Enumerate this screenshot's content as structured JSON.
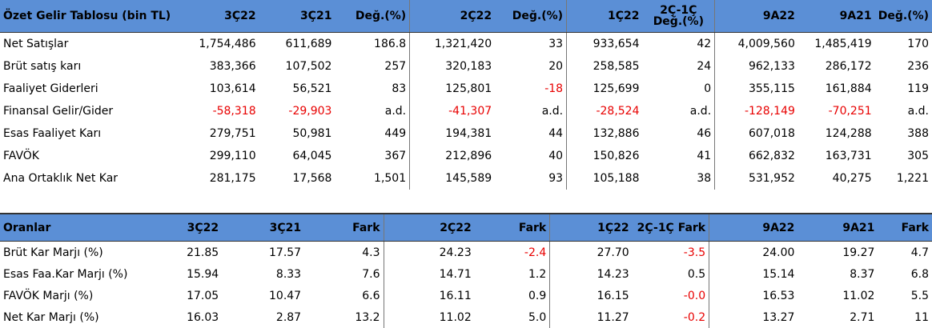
{
  "table1": {
    "headers": [
      "Özet Gelir Tablosu (bin TL)",
      "3Ç22",
      "3Ç21",
      "Değ.(%)",
      "2Ç22",
      "Değ.(%)",
      "1Ç22",
      "2Ç-1Ç",
      "Değ.(%)",
      "9A22",
      "9A21",
      "Değ.(%)"
    ],
    "rows": [
      {
        "label": "Net Satışlar",
        "cells": [
          "1,754,486",
          "611,689",
          "186.8",
          "1,321,420",
          "33",
          "933,654",
          "42",
          "4,009,560",
          "1,485,419",
          "170"
        ]
      },
      {
        "label": "Brüt satış karı",
        "cells": [
          "383,366",
          "107,502",
          "257",
          "320,183",
          "20",
          "258,585",
          "24",
          "962,133",
          "286,172",
          "236"
        ]
      },
      {
        "label": "Faaliyet Giderleri",
        "cells": [
          "103,614",
          "56,521",
          "83",
          "125,801",
          "-18",
          "125,699",
          "0",
          "355,115",
          "161,884",
          "119"
        ]
      },
      {
        "label": "Finansal Gelir/Gider",
        "cells": [
          "-58,318",
          "-29,903",
          "a.d.",
          "-41,307",
          "a.d.",
          "-28,524",
          "a.d.",
          "-128,149",
          "-70,251",
          "a.d."
        ]
      },
      {
        "label": "Esas Faaliyet Karı",
        "cells": [
          "279,751",
          "50,981",
          "449",
          "194,381",
          "44",
          "132,886",
          "46",
          "607,018",
          "124,288",
          "388"
        ]
      },
      {
        "label": "FAVÖK",
        "cells": [
          "299,110",
          "64,045",
          "367",
          "212,896",
          "40",
          "150,826",
          "41",
          "662,832",
          "163,731",
          "305"
        ]
      },
      {
        "label": "Ana Ortaklık Net Kar",
        "cells": [
          "281,175",
          "17,568",
          "1,501",
          "145,589",
          "93",
          "105,188",
          "38",
          "531,952",
          "40,275",
          "1,221"
        ]
      }
    ]
  },
  "table2": {
    "headers": [
      "Oranlar",
      "3Ç22",
      "3Ç21",
      "Fark",
      "2Ç22",
      "Fark",
      "1Ç22",
      "2Ç-1Ç Fark",
      "9A22",
      "9A21",
      "Fark"
    ],
    "rows": [
      {
        "label": "Brüt Kar Marjı (%)",
        "cells": [
          "21.85",
          "17.57",
          "4.3",
          "24.23",
          "-2.4",
          "27.70",
          "-3.5",
          "24.00",
          "19.27",
          "4.7"
        ]
      },
      {
        "label": "Esas Faa.Kar Marjı (%)",
        "cells": [
          "15.94",
          "8.33",
          "7.6",
          "14.71",
          "1.2",
          "14.23",
          "0.5",
          "15.14",
          "8.37",
          "6.8"
        ]
      },
      {
        "label": "FAVÖK Marjı (%)",
        "cells": [
          "17.05",
          "10.47",
          "6.6",
          "16.11",
          "0.9",
          "16.15",
          "-0.0",
          "16.53",
          "11.02",
          "5.5"
        ]
      },
      {
        "label": "Net Kar Marjı (%)",
        "cells": [
          "16.03",
          "2.87",
          "13.2",
          "11.02",
          "5.0",
          "11.27",
          "-0.2",
          "13.27",
          "2.71",
          "11"
        ]
      }
    ]
  },
  "colors": {
    "header_bg": "#5b8fd6",
    "negative": "#e80000"
  }
}
